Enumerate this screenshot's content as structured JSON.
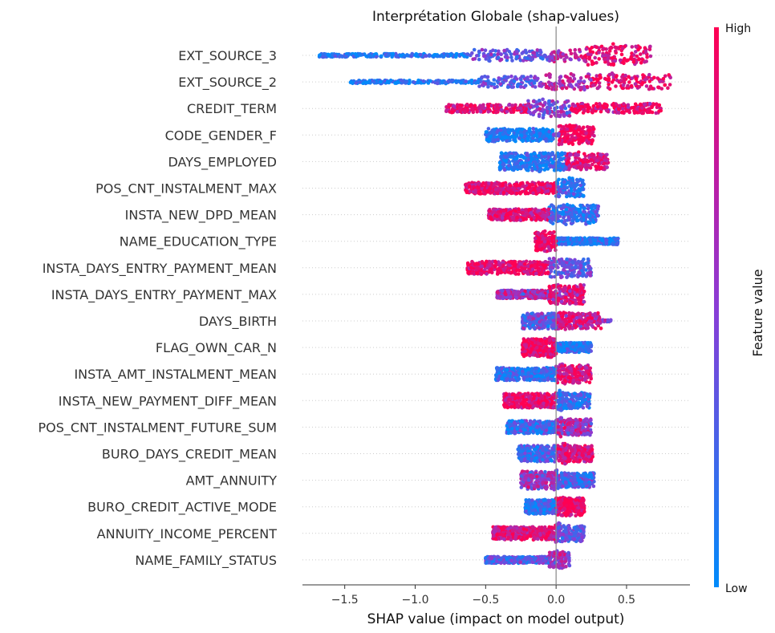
{
  "chart_data": {
    "type": "scatter",
    "subtype": "shap-beeswarm-summary",
    "title": "Interprétation Globale (shap-values)",
    "xlabel": "SHAP value (impact on model output)",
    "xlim": [
      -1.8,
      0.95
    ],
    "xticks": [
      -1.5,
      -1.0,
      -0.5,
      0.0,
      0.5
    ],
    "xtick_labels": [
      "−1.5",
      "−1.0",
      "−0.5",
      "0.0",
      "0.5"
    ],
    "colorbar": {
      "label": "Feature value",
      "high_label": "High",
      "low_label": "Low",
      "low_color": "#008bfb",
      "high_color": "#ff0052"
    },
    "features": [
      {
        "name": "EXT_SOURCE_3",
        "min": -1.68,
        "max": 0.68,
        "segments": [
          [
            -1.68,
            -0.6,
            2,
            0.1
          ],
          [
            -0.6,
            -0.05,
            7,
            0.4
          ],
          [
            -0.05,
            0.2,
            8,
            0.7
          ],
          [
            0.2,
            0.68,
            12,
            0.9
          ]
        ],
        "bumps": [
          [
            0.42,
            16
          ]
        ],
        "color_mode": "low-left"
      },
      {
        "name": "EXT_SOURCE_2",
        "min": -1.46,
        "max": 0.82,
        "segments": [
          [
            -1.46,
            -0.55,
            2,
            0.1
          ],
          [
            -0.55,
            -0.1,
            7,
            0.35
          ],
          [
            -0.1,
            0.25,
            10,
            0.65
          ],
          [
            0.25,
            0.82,
            9,
            0.9
          ]
        ],
        "bumps": [
          [
            0.4,
            12
          ]
        ],
        "color_mode": "low-left"
      },
      {
        "name": "CREDIT_TERM",
        "min": -0.78,
        "max": 0.75,
        "segments": [
          [
            -0.78,
            -0.2,
            5,
            0.9
          ],
          [
            -0.2,
            0.1,
            10,
            0.45
          ],
          [
            0.1,
            0.75,
            6,
            0.95
          ]
        ],
        "bumps": [
          [
            -0.1,
            12
          ]
        ],
        "color_mode": "mixed"
      },
      {
        "name": "CODE_GENDER_F",
        "min": -0.5,
        "max": 0.27,
        "segments": [
          [
            -0.5,
            -0.02,
            8,
            0.1
          ],
          [
            0.02,
            0.27,
            12,
            0.95
          ]
        ],
        "bumps": [
          [
            0.1,
            13
          ]
        ],
        "color_mode": "split"
      },
      {
        "name": "DAYS_EMPLOYED",
        "min": -0.4,
        "max": 0.37,
        "segments": [
          [
            -0.4,
            0.07,
            11,
            0.15
          ],
          [
            0.07,
            0.37,
            10,
            0.85
          ]
        ],
        "bumps": [
          [
            -0.12,
            13
          ],
          [
            0.15,
            12
          ]
        ],
        "color_mode": "low-left"
      },
      {
        "name": "POS_CNT_INSTALMENT_MAX",
        "min": -0.65,
        "max": 0.2,
        "segments": [
          [
            -0.65,
            0.0,
            7,
            0.9
          ],
          [
            0.0,
            0.2,
            11,
            0.2
          ]
        ],
        "bumps": [
          [
            0.1,
            13
          ]
        ],
        "color_mode": "high-left"
      },
      {
        "name": "INSTA_NEW_DPD_MEAN",
        "min": -0.48,
        "max": 0.3,
        "segments": [
          [
            -0.48,
            -0.05,
            7,
            0.85
          ],
          [
            -0.05,
            0.3,
            12,
            0.2
          ]
        ],
        "bumps": [
          [
            0.08,
            13
          ]
        ],
        "color_mode": "high-left"
      },
      {
        "name": "NAME_EDUCATION_TYPE",
        "min": -0.15,
        "max": 0.44,
        "segments": [
          [
            -0.15,
            0.0,
            12,
            0.95
          ],
          [
            0.0,
            0.44,
            4,
            0.1
          ]
        ],
        "bumps": [
          [
            -0.07,
            13
          ]
        ],
        "color_mode": "high-left"
      },
      {
        "name": "INSTA_DAYS_ENTRY_PAYMENT_MEAN",
        "min": -0.63,
        "max": 0.25,
        "segments": [
          [
            -0.63,
            -0.05,
            8,
            0.9
          ],
          [
            -0.05,
            0.25,
            12,
            0.35
          ]
        ],
        "bumps": [
          [
            0.07,
            13
          ]
        ],
        "color_mode": "high-left"
      },
      {
        "name": "INSTA_DAYS_ENTRY_PAYMENT_MAX",
        "min": -0.42,
        "max": 0.2,
        "segments": [
          [
            -0.42,
            -0.05,
            5,
            0.6
          ],
          [
            -0.05,
            0.2,
            12,
            0.85
          ]
        ],
        "bumps": [
          [
            0.07,
            13
          ]
        ],
        "color_mode": "mixed"
      },
      {
        "name": "DAYS_BIRTH",
        "min": -0.24,
        "max": 0.39,
        "segments": [
          [
            -0.24,
            0.0,
            10,
            0.35
          ],
          [
            0.0,
            0.32,
            10,
            0.8
          ]
        ],
        "bumps": [
          [
            0.05,
            12
          ]
        ],
        "color_mode": "mixed"
      },
      {
        "name": "FLAG_OWN_CAR_N",
        "min": -0.24,
        "max": 0.25,
        "segments": [
          [
            -0.24,
            0.0,
            11,
            0.95
          ],
          [
            0.0,
            0.25,
            6,
            0.15
          ]
        ],
        "bumps": [
          [
            -0.04,
            13
          ]
        ],
        "color_mode": "high-left"
      },
      {
        "name": "INSTA_AMT_INSTALMENT_MEAN",
        "min": -0.43,
        "max": 0.25,
        "segments": [
          [
            -0.43,
            0.0,
            8,
            0.15
          ],
          [
            0.0,
            0.25,
            11,
            0.85
          ]
        ],
        "bumps": [
          [
            0.05,
            13
          ]
        ],
        "color_mode": "low-left"
      },
      {
        "name": "INSTA_NEW_PAYMENT_DIFF_MEAN",
        "min": -0.37,
        "max": 0.24,
        "segments": [
          [
            -0.37,
            0.0,
            9,
            0.9
          ],
          [
            0.0,
            0.24,
            10,
            0.2
          ]
        ],
        "bumps": [
          [
            0.03,
            13
          ]
        ],
        "color_mode": "high-left"
      },
      {
        "name": "POS_CNT_INSTALMENT_FUTURE_SUM",
        "min": -0.35,
        "max": 0.25,
        "segments": [
          [
            -0.35,
            0.0,
            8,
            0.2
          ],
          [
            0.0,
            0.25,
            10,
            0.6
          ]
        ],
        "bumps": [
          [
            0.04,
            12
          ]
        ],
        "color_mode": "mixed"
      },
      {
        "name": "BURO_DAYS_CREDIT_MEAN",
        "min": -0.27,
        "max": 0.26,
        "segments": [
          [
            -0.27,
            0.0,
            10,
            0.25
          ],
          [
            0.0,
            0.26,
            10,
            0.85
          ]
        ],
        "bumps": [
          [
            0.06,
            13
          ]
        ],
        "color_mode": "low-left"
      },
      {
        "name": "AMT_ANNUITY",
        "min": -0.25,
        "max": 0.27,
        "segments": [
          [
            -0.25,
            0.0,
            11,
            0.55
          ],
          [
            0.0,
            0.27,
            9,
            0.25
          ]
        ],
        "bumps": [
          [
            0.0,
            13
          ]
        ],
        "color_mode": "mixed"
      },
      {
        "name": "BURO_CREDIT_ACTIVE_MODE",
        "min": -0.22,
        "max": 0.2,
        "segments": [
          [
            -0.22,
            0.0,
            9,
            0.15
          ],
          [
            0.0,
            0.2,
            11,
            0.95
          ]
        ],
        "bumps": [
          [
            0.05,
            12
          ]
        ],
        "color_mode": "split"
      },
      {
        "name": "ANNUITY_INCOME_PERCENT",
        "min": -0.45,
        "max": 0.2,
        "segments": [
          [
            -0.45,
            0.0,
            8,
            0.85
          ],
          [
            0.0,
            0.2,
            10,
            0.35
          ]
        ],
        "bumps": [
          [
            0.02,
            13
          ]
        ],
        "color_mode": "high-left"
      },
      {
        "name": "NAME_FAMILY_STATUS",
        "min": -0.5,
        "max": 0.1,
        "segments": [
          [
            -0.5,
            -0.05,
            4,
            0.3
          ],
          [
            -0.05,
            0.1,
            10,
            0.6
          ]
        ],
        "bumps": [
          [
            0.02,
            12
          ]
        ],
        "color_mode": "mixed"
      }
    ]
  }
}
